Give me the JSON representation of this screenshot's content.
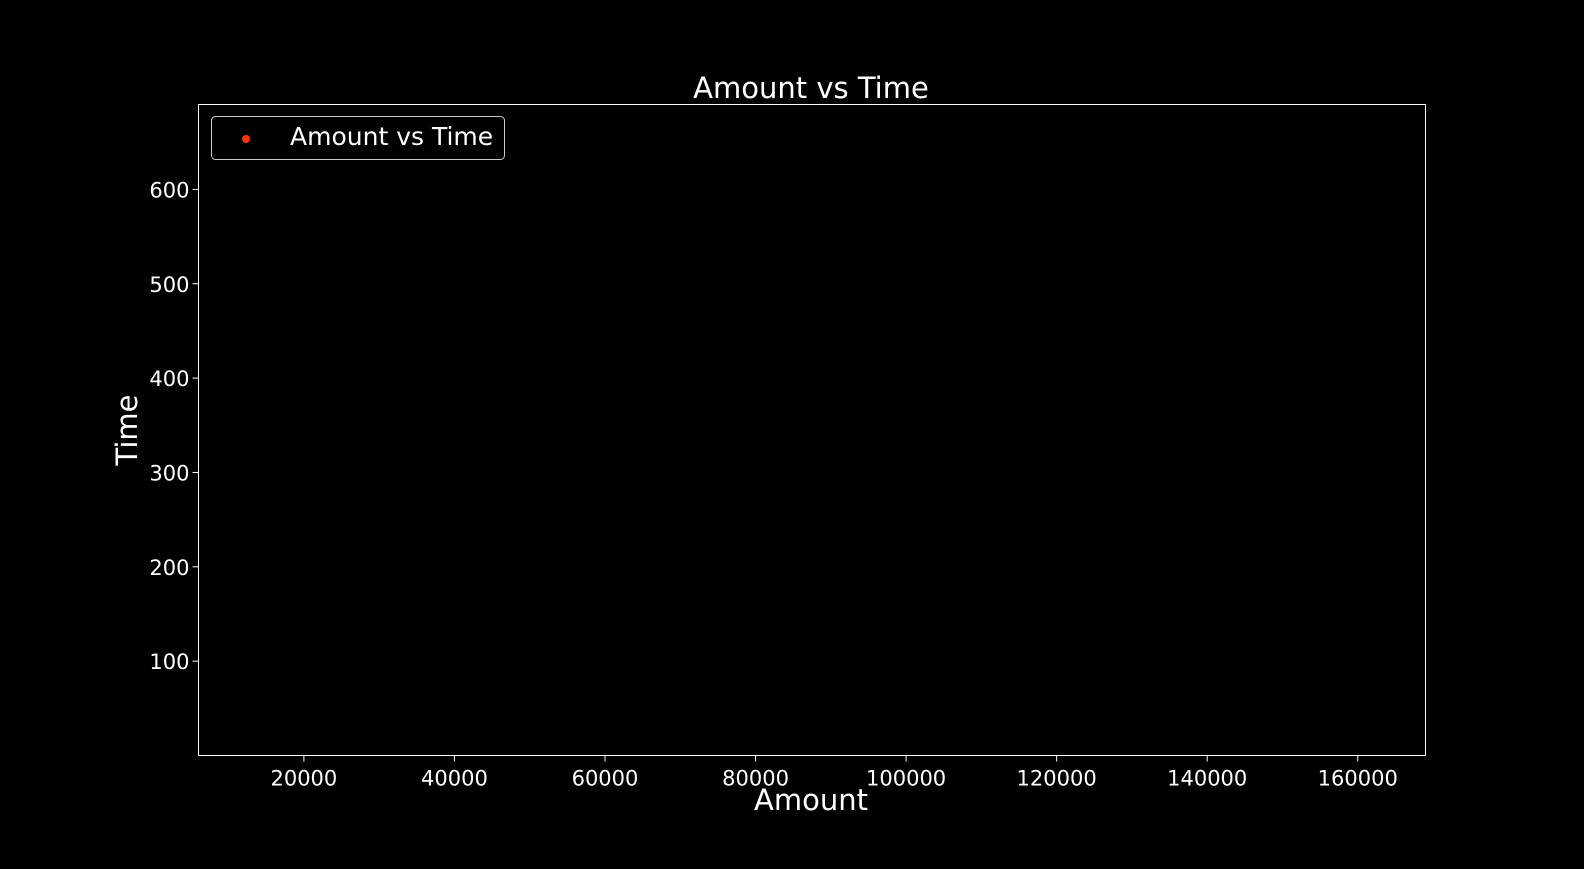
{
  "chart_data": {
    "type": "scatter",
    "title": "Amount vs Time",
    "xlabel": "Amount",
    "ylabel": "Time",
    "xlim": [
      6000,
      169000
    ],
    "ylim": [
      0,
      690
    ],
    "x_ticks": [
      20000,
      40000,
      60000,
      80000,
      100000,
      120000,
      140000,
      160000
    ],
    "y_ticks": [
      100,
      200,
      300,
      400,
      500,
      600
    ],
    "grid": false,
    "legend_position": "top-left",
    "series": [
      {
        "name": "Amount vs Time",
        "color": "#ff3300",
        "points": []
      }
    ]
  },
  "colors": {
    "background": "#000000",
    "foreground": "#ffffff",
    "marker": "#ff3300"
  }
}
